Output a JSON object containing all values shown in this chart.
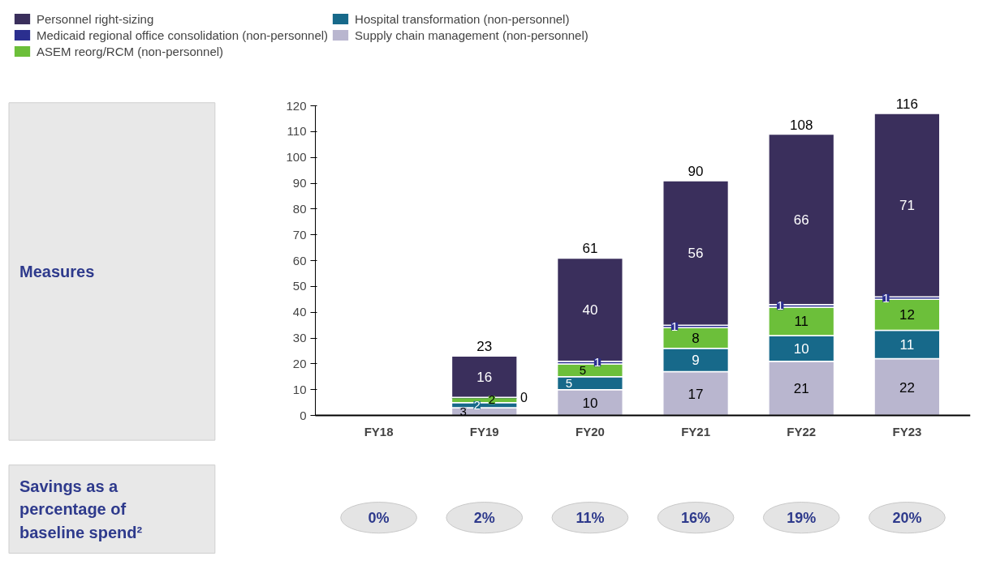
{
  "chart_data": {
    "type": "bar",
    "stacked": true,
    "categories": [
      "FY18",
      "FY19",
      "FY20",
      "FY21",
      "FY22",
      "FY23"
    ],
    "series": [
      {
        "name": "Supply chain management (non-personnel)",
        "color": "#b9b6cf",
        "values": [
          0,
          3,
          10,
          17,
          21,
          22
        ],
        "value_labels": [
          null,
          "3",
          "10",
          "17",
          "21",
          "22"
        ]
      },
      {
        "name": "Hospital transformation (non-personnel)",
        "color": "#17698a",
        "values": [
          0,
          2,
          5,
          9,
          10,
          11
        ],
        "value_labels": [
          null,
          "2",
          "5",
          "9",
          "10",
          "11"
        ]
      },
      {
        "name": "ASEM reorg/RCM (non-personnel)",
        "color": "#6cbf3a",
        "values": [
          0,
          2,
          5,
          8,
          11,
          12
        ],
        "value_labels": [
          null,
          "2",
          "5",
          "8",
          "11",
          "12"
        ]
      },
      {
        "name": "Medicaid regional office consolidation (non-personnel)",
        "color": "#2b2f8f",
        "values": [
          0,
          0,
          1,
          1,
          1,
          1
        ],
        "value_labels": [
          null,
          "0",
          "1",
          "1",
          "1",
          "1"
        ]
      },
      {
        "name": "Personnel right-sizing",
        "color": "#3a2f5c",
        "values": [
          0,
          16,
          40,
          56,
          66,
          71
        ],
        "value_labels": [
          null,
          "16",
          "40",
          "56",
          "66",
          "71"
        ]
      }
    ],
    "totals": [
      null,
      "23",
      "61",
      "90",
      "108",
      "116"
    ],
    "ylim": [
      0,
      120
    ],
    "yticks": [
      0,
      10,
      20,
      30,
      40,
      50,
      60,
      70,
      80,
      90,
      100,
      110,
      120
    ],
    "grid": false,
    "legend": "top left",
    "annotations": [
      "Measures",
      "Savings as a percentage of baseline spend²",
      "0%",
      "2%",
      "11%",
      "16%",
      "19%",
      "20%"
    ]
  }
}
